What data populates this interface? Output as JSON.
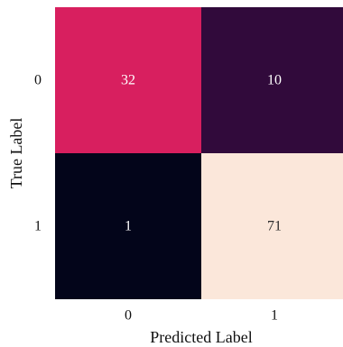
{
  "chart_data": {
    "type": "heatmap",
    "title": "",
    "xlabel": "Predicted Label",
    "ylabel": "True Label",
    "x_categories": [
      "0",
      "1"
    ],
    "y_categories": [
      "0",
      "1"
    ],
    "values": [
      [
        32,
        10
      ],
      [
        1,
        71
      ]
    ],
    "annotations": [
      [
        "32",
        "10"
      ],
      [
        "1",
        "71"
      ]
    ],
    "colors": {
      "cell_0_0": "#d81f5f",
      "cell_0_1": "#310a3b",
      "cell_1_0": "#03051a",
      "cell_1_1": "#fbe7da",
      "text_light": "#ffffff",
      "text_dark": "#2a2a2a"
    },
    "colorbar": false,
    "grid": false
  }
}
